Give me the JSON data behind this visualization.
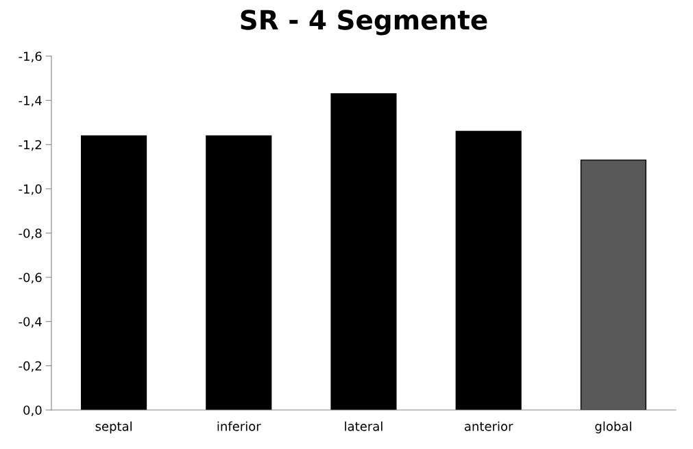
{
  "chart_data": {
    "type": "bar",
    "title": "SR - 4 Segmente",
    "categories": [
      "septal",
      "inferior",
      "lateral",
      "anterior",
      "global"
    ],
    "values": [
      -1.24,
      -1.24,
      -1.43,
      -1.26,
      -1.13
    ],
    "colors": [
      "#000000",
      "#000000",
      "#000000",
      "#000000",
      "#595959"
    ],
    "ylim": [
      0,
      -1.6
    ],
    "yticks": [
      {
        "value": 0,
        "label": "0,0"
      },
      {
        "value": -0.2,
        "label": "-0,2"
      },
      {
        "value": -0.4,
        "label": "-0,4"
      },
      {
        "value": -0.6,
        "label": "-0,6"
      },
      {
        "value": -0.8,
        "label": "-0,8"
      },
      {
        "value": -1.0,
        "label": "-1,0"
      },
      {
        "value": -1.2,
        "label": "-1,2"
      },
      {
        "value": -1.4,
        "label": "-1,4"
      },
      {
        "value": -1.6,
        "label": "-1,6"
      }
    ],
    "grid": false
  }
}
